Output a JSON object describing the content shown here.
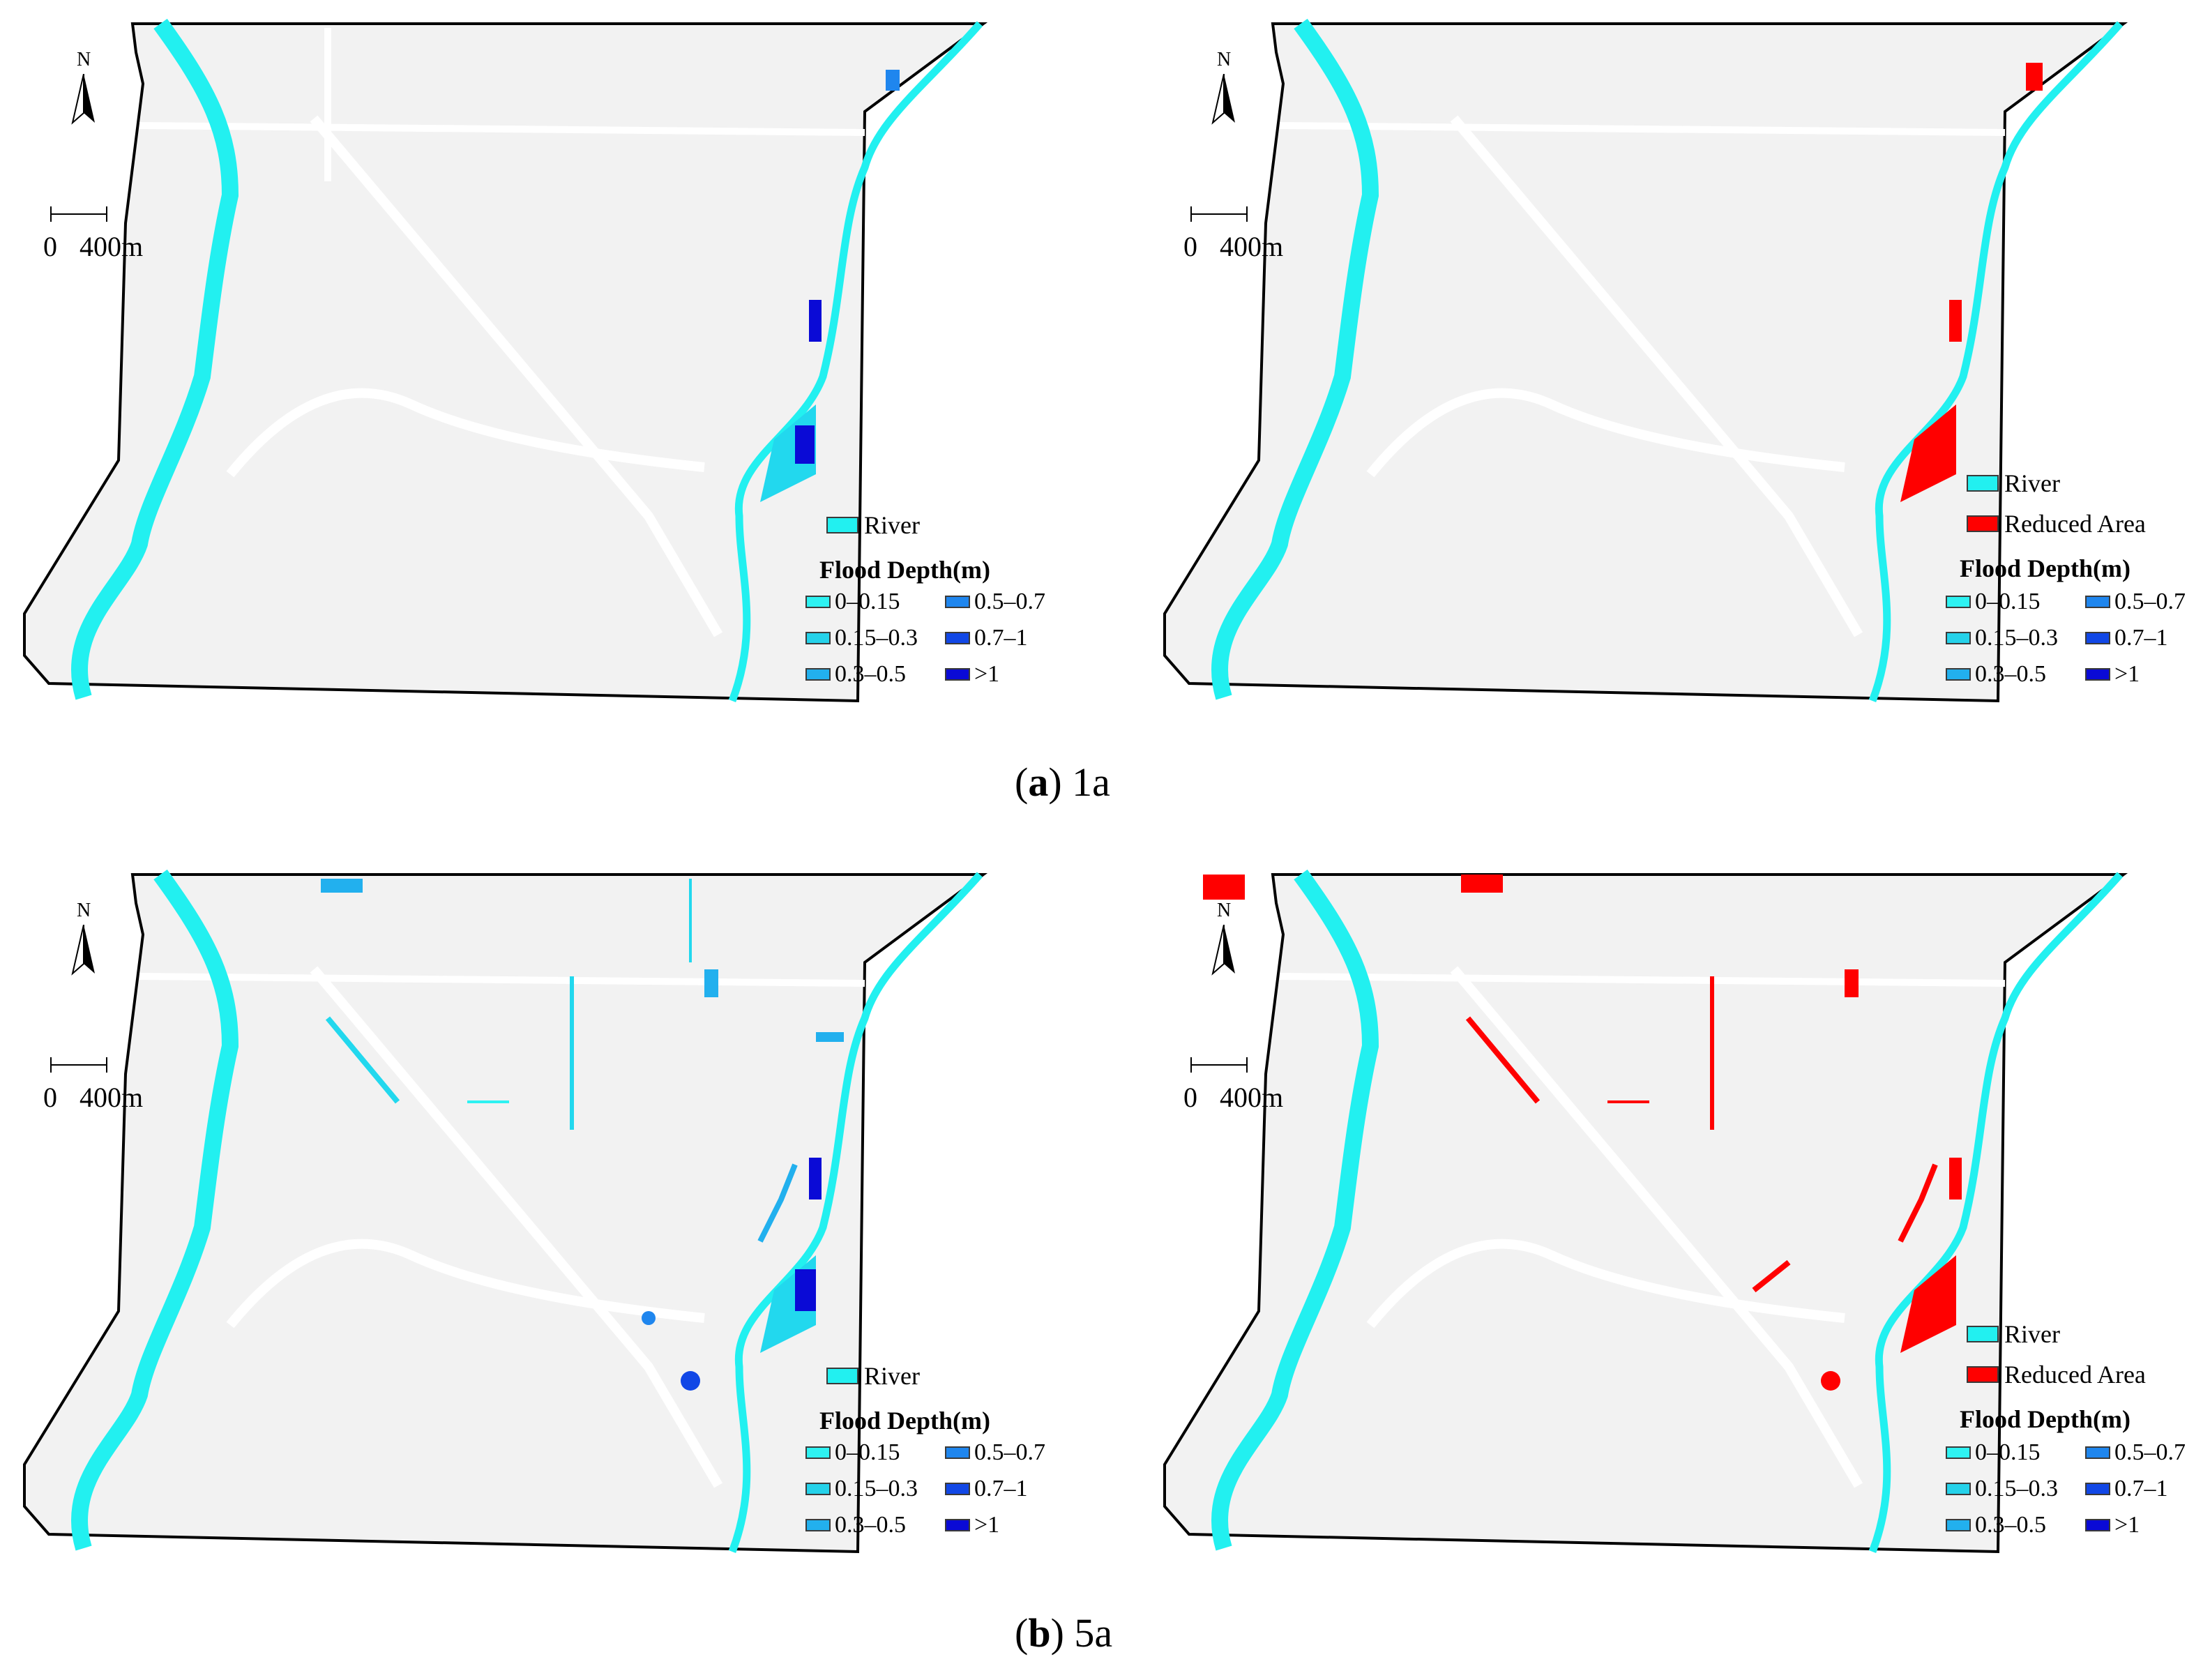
{
  "map": {
    "north_label": "N",
    "scale": {
      "zero": "0",
      "distance": "400m"
    },
    "legend": {
      "river_label": "River",
      "reduced_label": "Reduced Area",
      "depth_title": "Flood Depth(m)",
      "classes": [
        {
          "label": "0–0.15",
          "color": "#2ef2f2"
        },
        {
          "label": "0.5–0.7",
          "color": "#1f86ee"
        },
        {
          "label": "0.15–0.3",
          "color": "#25d2ea"
        },
        {
          "label": "0.7–1",
          "color": "#1147e6"
        },
        {
          "label": "0.3–0.5",
          "color": "#22b0ee"
        },
        {
          "label": ">1",
          "color": "#0a0ad6"
        }
      ]
    },
    "colors": {
      "river": "#22f0f0",
      "background": "#f2f2f2",
      "road": "#ffffff",
      "outline": "#000000",
      "reduced": "#ff0000",
      "deep": "#0a0ad6"
    }
  },
  "captions": {
    "a_letter": "a",
    "a_text": "1a",
    "b_letter": "b",
    "b_text": "5a"
  }
}
